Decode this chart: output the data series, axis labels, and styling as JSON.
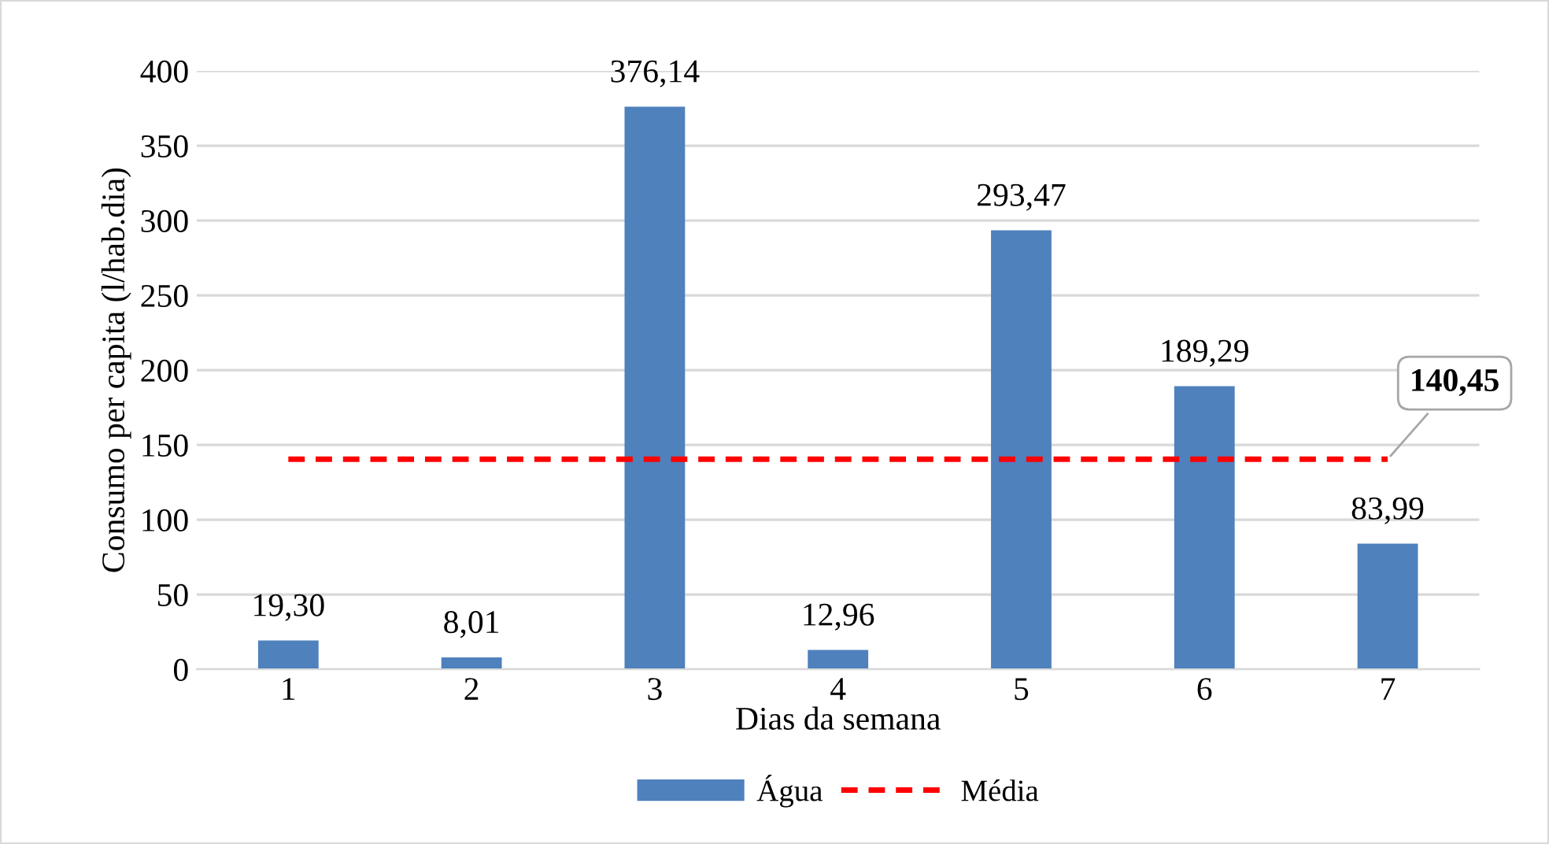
{
  "chart_data": {
    "type": "bar",
    "xlabel": "Dias da semana",
    "ylabel": "Consumo per capita (l/hab.dia)",
    "categories": [
      "1",
      "2",
      "3",
      "4",
      "5",
      "6",
      "7"
    ],
    "series": [
      {
        "name": "Água",
        "color": "#4f81bd",
        "values": [
          19.3,
          8.01,
          376.14,
          12.96,
          293.47,
          189.29,
          83.99
        ],
        "value_labels": [
          "19,30",
          "8,01",
          "376,14",
          "12,96",
          "293,47",
          "189,29",
          "83,99"
        ]
      },
      {
        "name": "Média",
        "type": "line",
        "color": "#ff0000",
        "line_style": "dashed",
        "marker": "none",
        "values": [
          140.45,
          140.45,
          140.45,
          140.45,
          140.45,
          140.45,
          140.45
        ],
        "value_labels": [
          null,
          null,
          null,
          null,
          null,
          null,
          "140,45"
        ]
      }
    ],
    "ylim": [
      0,
      400
    ],
    "yticks": [
      0,
      50,
      100,
      150,
      200,
      250,
      300,
      350,
      400
    ],
    "grid": "y",
    "legend": "bottom"
  }
}
